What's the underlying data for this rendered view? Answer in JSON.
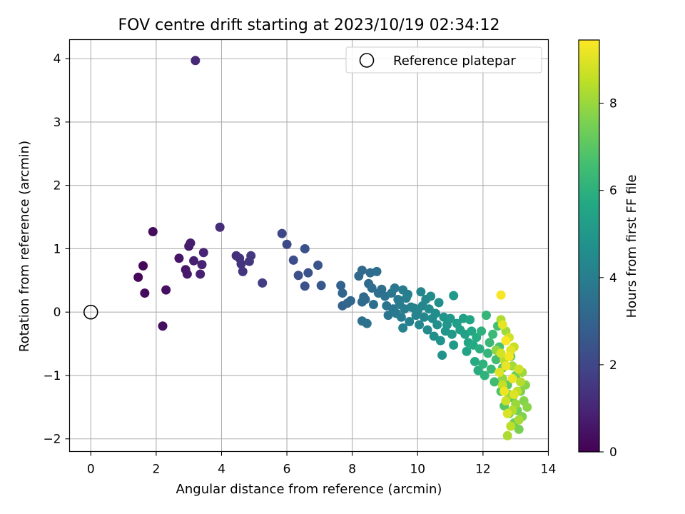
{
  "chart_data": {
    "type": "scatter",
    "title": "FOV centre drift starting at 2023/10/19 02:34:12",
    "xlabel": "Angular distance from reference (arcmin)",
    "ylabel": "Rotation from reference (arcmin)",
    "xlim": [
      -0.65,
      14
    ],
    "ylim": [
      -2.2,
      4.3
    ],
    "xticks": [
      0,
      2,
      4,
      6,
      8,
      10,
      12,
      14
    ],
    "yticks": [
      -2,
      -1,
      0,
      1,
      2,
      3,
      4
    ],
    "grid": true,
    "legend": {
      "position": "top-right",
      "entries": [
        "Reference platepar"
      ]
    },
    "reference_point": {
      "label": "Reference platepar",
      "x": 0,
      "y": 0
    },
    "colorbar": {
      "label": "Hours from first FF file",
      "min": 0,
      "max": 9.45,
      "ticks": [
        0,
        2,
        4,
        6,
        8
      ],
      "colormap": "viridis"
    },
    "points": [
      [
        1.45,
        0.55,
        0.15
      ],
      [
        1.6,
        0.73,
        0.2
      ],
      [
        1.65,
        0.3,
        0.25
      ],
      [
        1.9,
        1.27,
        0.3
      ],
      [
        2.2,
        -0.22,
        0.35
      ],
      [
        2.3,
        0.35,
        0.4
      ],
      [
        2.7,
        0.85,
        0.55
      ],
      [
        2.9,
        0.67,
        0.6
      ],
      [
        2.95,
        0.6,
        0.65
      ],
      [
        3.0,
        1.04,
        0.7
      ],
      [
        3.05,
        1.09,
        0.75
      ],
      [
        3.15,
        0.81,
        0.8
      ],
      [
        3.35,
        0.6,
        0.85
      ],
      [
        3.4,
        0.75,
        0.9
      ],
      [
        3.45,
        0.94,
        0.95
      ],
      [
        3.2,
        3.97,
        1.1
      ],
      [
        3.95,
        1.34,
        1.2
      ],
      [
        4.45,
        0.89,
        1.3
      ],
      [
        4.55,
        0.85,
        1.35
      ],
      [
        4.6,
        0.76,
        1.4
      ],
      [
        4.65,
        0.64,
        1.45
      ],
      [
        4.85,
        0.8,
        1.5
      ],
      [
        4.9,
        0.89,
        1.55
      ],
      [
        5.25,
        0.46,
        1.7
      ],
      [
        5.85,
        1.24,
        2.0
      ],
      [
        6.0,
        1.07,
        2.1
      ],
      [
        6.2,
        0.82,
        2.2
      ],
      [
        6.35,
        0.58,
        2.3
      ],
      [
        6.55,
        1.0,
        2.35
      ],
      [
        6.55,
        0.41,
        2.4
      ],
      [
        6.65,
        0.62,
        2.45
      ],
      [
        6.95,
        0.74,
        2.5
      ],
      [
        7.05,
        0.42,
        2.6
      ],
      [
        7.65,
        0.42,
        3.0
      ],
      [
        7.7,
        0.1,
        3.0
      ],
      [
        7.7,
        0.3,
        3.05
      ],
      [
        7.85,
        0.14,
        3.1
      ],
      [
        7.95,
        0.18,
        3.15
      ],
      [
        8.2,
        0.57,
        3.2
      ],
      [
        8.3,
        0.66,
        3.2
      ],
      [
        8.35,
        0.24,
        3.25
      ],
      [
        8.4,
        0.2,
        3.25
      ],
      [
        8.3,
        0.16,
        3.3
      ],
      [
        8.5,
        0.45,
        3.3
      ],
      [
        8.55,
        0.62,
        3.35
      ],
      [
        8.6,
        0.38,
        3.35
      ],
      [
        8.65,
        0.12,
        3.4
      ],
      [
        8.75,
        0.64,
        3.4
      ],
      [
        8.8,
        0.3,
        3.45
      ],
      [
        8.9,
        0.36,
        3.45
      ],
      [
        8.3,
        -0.14,
        3.5
      ],
      [
        8.45,
        -0.18,
        3.5
      ],
      [
        9.0,
        0.25,
        3.55
      ],
      [
        9.05,
        0.1,
        3.6
      ],
      [
        9.1,
        -0.05,
        3.65
      ],
      [
        9.2,
        0.3,
        3.7
      ],
      [
        9.25,
        0.05,
        3.7
      ],
      [
        9.3,
        0.38,
        3.75
      ],
      [
        9.35,
        -0.02,
        3.8
      ],
      [
        9.4,
        0.2,
        3.85
      ],
      [
        9.45,
        0.12,
        3.9
      ],
      [
        9.5,
        -0.08,
        3.9
      ],
      [
        9.55,
        0.35,
        3.95
      ],
      [
        9.6,
        0.05,
        4.0
      ],
      [
        9.65,
        0.22,
        4.0
      ],
      [
        9.7,
        0.28,
        4.05
      ],
      [
        9.75,
        -0.15,
        4.1
      ],
      [
        9.8,
        0.08,
        4.1
      ],
      [
        9.55,
        -0.25,
        4.15
      ],
      [
        9.9,
        0.06,
        4.2
      ],
      [
        9.95,
        -0.05,
        4.2
      ],
      [
        10.0,
        0.02,
        4.25
      ],
      [
        10.05,
        -0.2,
        4.3
      ],
      [
        10.1,
        0.32,
        4.3
      ],
      [
        10.15,
        0.1,
        4.35
      ],
      [
        10.2,
        -0.08,
        4.35
      ],
      [
        10.25,
        0.2,
        4.4
      ],
      [
        10.3,
        -0.28,
        4.45
      ],
      [
        10.35,
        0.05,
        4.5
      ],
      [
        10.4,
        0.25,
        4.5
      ],
      [
        10.45,
        -0.1,
        4.55
      ],
      [
        10.5,
        -0.38,
        4.6
      ],
      [
        10.55,
        -0.02,
        4.6
      ],
      [
        10.6,
        -0.2,
        4.65
      ],
      [
        10.65,
        0.15,
        4.7
      ],
      [
        10.7,
        -0.45,
        4.75
      ],
      [
        10.75,
        -0.68,
        4.8
      ],
      [
        10.8,
        -0.08,
        4.85
      ],
      [
        10.85,
        -0.3,
        4.9
      ],
      [
        10.9,
        -0.2,
        4.95
      ],
      [
        11.0,
        -0.1,
        5.0
      ],
      [
        11.05,
        -0.35,
        5.05
      ],
      [
        11.1,
        0.26,
        5.1
      ],
      [
        11.1,
        -0.52,
        5.15
      ],
      [
        11.2,
        -0.18,
        5.2
      ],
      [
        11.3,
        -0.28,
        5.3
      ],
      [
        11.4,
        -0.1,
        5.35
      ],
      [
        11.45,
        -0.35,
        5.4
      ],
      [
        11.5,
        -0.62,
        5.45
      ],
      [
        11.55,
        -0.48,
        5.5
      ],
      [
        11.6,
        -0.12,
        5.55
      ],
      [
        11.65,
        -0.3,
        5.6
      ],
      [
        11.7,
        -0.52,
        5.7
      ],
      [
        11.75,
        -0.78,
        5.75
      ],
      [
        11.8,
        -0.4,
        5.8
      ],
      [
        11.85,
        -0.92,
        5.85
      ],
      [
        11.9,
        -0.58,
        5.9
      ],
      [
        11.95,
        -0.3,
        6.0
      ],
      [
        12.0,
        -0.82,
        6.05
      ],
      [
        12.05,
        -1.0,
        6.1
      ],
      [
        12.1,
        -0.05,
        6.15
      ],
      [
        12.15,
        -0.65,
        6.2
      ],
      [
        12.2,
        -0.48,
        6.3
      ],
      [
        12.25,
        -0.9,
        6.35
      ],
      [
        12.3,
        -0.35,
        6.4
      ],
      [
        12.35,
        -1.1,
        6.5
      ],
      [
        12.4,
        -0.75,
        6.55
      ],
      [
        12.45,
        -0.22,
        6.6
      ],
      [
        12.5,
        -0.55,
        6.7
      ],
      [
        12.55,
        -1.25,
        6.75
      ],
      [
        12.6,
        -0.88,
        6.8
      ],
      [
        12.65,
        -1.48,
        6.9
      ],
      [
        12.7,
        -0.45,
        6.95
      ],
      [
        12.75,
        -1.15,
        7.0
      ],
      [
        12.8,
        -1.6,
        7.1
      ],
      [
        12.85,
        -0.7,
        7.15
      ],
      [
        12.9,
        -1.35,
        7.2
      ],
      [
        12.95,
        -1.75,
        7.3
      ],
      [
        13.0,
        -1.0,
        7.35
      ],
      [
        13.05,
        -1.55,
        7.4
      ],
      [
        13.1,
        -1.85,
        7.5
      ],
      [
        13.15,
        -1.25,
        7.55
      ],
      [
        13.2,
        -1.65,
        7.6
      ],
      [
        13.25,
        -1.4,
        7.7
      ],
      [
        13.3,
        -1.15,
        7.75
      ],
      [
        13.35,
        -1.5,
        7.8
      ],
      [
        12.4,
        -0.6,
        7.85
      ],
      [
        12.6,
        -1.05,
        7.9
      ],
      [
        12.8,
        -1.3,
        7.95
      ],
      [
        13.0,
        -1.45,
        8.0
      ],
      [
        13.2,
        -0.95,
        8.05
      ],
      [
        12.7,
        -0.3,
        8.1
      ],
      [
        12.9,
        -0.85,
        8.15
      ],
      [
        13.1,
        -1.7,
        8.2
      ],
      [
        12.75,
        -1.95,
        8.25
      ],
      [
        12.55,
        -0.12,
        8.3
      ],
      [
        12.9,
        -1.55,
        8.35
      ],
      [
        13.15,
        -1.1,
        8.4
      ],
      [
        12.65,
        -0.75,
        8.45
      ],
      [
        12.85,
        -1.8,
        8.5
      ],
      [
        13.05,
        -1.25,
        8.55
      ],
      [
        12.6,
        -1.15,
        8.6
      ],
      [
        12.95,
        -0.55,
        8.65
      ],
      [
        12.7,
        -1.4,
        8.7
      ],
      [
        13.1,
        -0.9,
        8.75
      ],
      [
        12.8,
        -0.4,
        8.8
      ],
      [
        12.55,
        -0.65,
        8.85
      ],
      [
        12.75,
        -1.6,
        8.9
      ],
      [
        12.95,
        -1.3,
        8.95
      ],
      [
        12.5,
        -0.95,
        9.0
      ],
      [
        12.85,
        -0.6,
        9.05
      ],
      [
        12.6,
        -0.2,
        9.1
      ],
      [
        12.7,
        -0.85,
        9.15
      ],
      [
        12.9,
        -1.05,
        9.2
      ],
      [
        12.65,
        -1.25,
        9.25
      ],
      [
        12.8,
        -0.7,
        9.3
      ],
      [
        12.55,
        0.27,
        9.35
      ],
      [
        12.7,
        -0.45,
        9.4
      ]
    ]
  }
}
